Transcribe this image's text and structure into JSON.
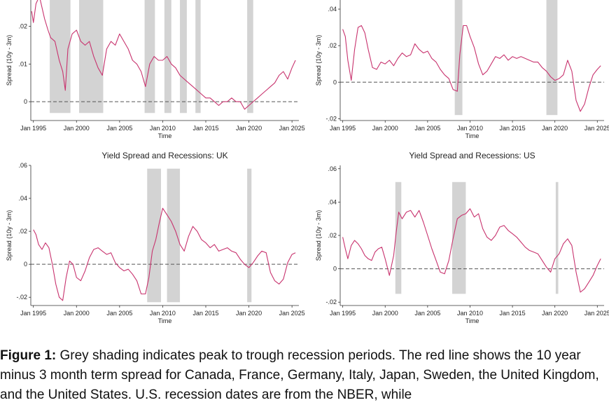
{
  "colors": {
    "series": "#c8336e",
    "recession": "#d3d3d3",
    "axis": "#333333",
    "zero_line": "#555555"
  },
  "caption": {
    "label": "Figure 1:",
    "text": " Grey shading indicates peak to trough recession periods. The red line shows the 10 year minus 3 month term spread for Canada, France, Germany, Italy, Japan, Sweden, the United Kingdom, and the United States. U.S. recession dates are from the NBER, while"
  },
  "chart_data": [
    {
      "type": "line",
      "title": "",
      "xlabel": "Time",
      "ylabel": "Spread (10y - 3m)",
      "xlim": [
        1994.7,
        2025.8
      ],
      "ylim": [
        -0.005,
        0.027
      ],
      "yticks": [
        {
          "v": 0,
          "label": "0"
        },
        {
          "v": 0.01,
          "label": ".01"
        },
        {
          "v": 0.02,
          "label": ".02"
        }
      ],
      "xticks": [
        {
          "v": 1995,
          "label": "Jan 1995"
        },
        {
          "v": 2000,
          "label": "Jan 2000"
        },
        {
          "v": 2005,
          "label": "Jan 2005"
        },
        {
          "v": 2010,
          "label": "Jan 2010"
        },
        {
          "v": 2015,
          "label": "Jan 2015"
        },
        {
          "v": 2020,
          "label": "Jan 2020"
        },
        {
          "v": 2025,
          "label": "Jan 2025"
        }
      ],
      "recessions": [
        [
          1996.9,
          1999.3
        ],
        [
          2000.3,
          2003.1
        ],
        [
          2007.9,
          2009.1
        ],
        [
          2010.2,
          2011.0
        ],
        [
          2012.0,
          2012.8
        ],
        [
          2013.8,
          2014.4
        ],
        [
          2019.8,
          2020.5
        ]
      ],
      "recession_range": [
        -0.003,
        0.027
      ],
      "x": [
        1994.8,
        1995.0,
        1995.3,
        1995.7,
        1996.0,
        1996.3,
        1996.7,
        1997.0,
        1997.5,
        1998.0,
        1998.4,
        1998.7,
        1999.0,
        1999.5,
        2000.0,
        2000.5,
        2001.0,
        2001.5,
        2002.0,
        2002.5,
        2003.0,
        2003.5,
        2004.0,
        2004.5,
        2005.0,
        2005.5,
        2006.0,
        2006.5,
        2007.0,
        2007.5,
        2008.0,
        2008.5,
        2009.0,
        2009.5,
        2010.0,
        2010.5,
        2011.0,
        2011.5,
        2012.0,
        2012.5,
        2013.0,
        2013.5,
        2014.0,
        2014.5,
        2015.0,
        2015.5,
        2016.0,
        2016.5,
        2017.0,
        2017.5,
        2018.0,
        2018.5,
        2019.0,
        2019.5,
        2020.0,
        2020.5,
        2021.0,
        2021.5,
        2022.0,
        2022.5,
        2023.0,
        2023.5,
        2024.0,
        2024.5,
        2025.0,
        2025.4
      ],
      "y": [
        0.024,
        0.021,
        0.026,
        0.028,
        0.025,
        0.022,
        0.019,
        0.017,
        0.016,
        0.011,
        0.008,
        0.003,
        0.014,
        0.018,
        0.019,
        0.016,
        0.015,
        0.016,
        0.012,
        0.009,
        0.007,
        0.014,
        0.016,
        0.015,
        0.018,
        0.016,
        0.014,
        0.011,
        0.01,
        0.008,
        0.004,
        0.01,
        0.012,
        0.011,
        0.011,
        0.012,
        0.01,
        0.009,
        0.007,
        0.006,
        0.005,
        0.004,
        0.003,
        0.002,
        0.001,
        0.001,
        0.0,
        -0.001,
        0.0,
        0.0,
        0.001,
        0.0,
        0.0,
        -0.002,
        -0.001,
        0.0,
        0.001,
        0.002,
        0.003,
        0.004,
        0.005,
        0.007,
        0.008,
        0.006,
        0.009,
        0.011
      ]
    },
    {
      "type": "line",
      "title": "",
      "xlabel": "Time",
      "ylabel": "Spread (10y - 3m)",
      "xlim": [
        1994.7,
        2025.8
      ],
      "ylim": [
        -0.021,
        0.045
      ],
      "yticks": [
        {
          "v": -0.02,
          "label": "-.02"
        },
        {
          "v": 0,
          "label": "0"
        },
        {
          "v": 0.02,
          "label": ".02"
        },
        {
          "v": 0.04,
          "label": ".04"
        }
      ],
      "xticks": [
        {
          "v": 1995,
          "label": "Jan 1995"
        },
        {
          "v": 2000,
          "label": "Jan 2000"
        },
        {
          "v": 2005,
          "label": "Jan 2005"
        },
        {
          "v": 2010,
          "label": "Jan 2010"
        },
        {
          "v": 2015,
          "label": "Jan 2015"
        },
        {
          "v": 2020,
          "label": "Jan 2020"
        },
        {
          "v": 2025,
          "label": "Jan 2025"
        }
      ],
      "recessions": [
        [
          2008.2,
          2009.1
        ],
        [
          2019.0,
          2020.3
        ]
      ],
      "recession_range": [
        -0.018,
        0.05
      ],
      "x": [
        1995.0,
        1995.3,
        1995.6,
        1996.0,
        1996.4,
        1996.8,
        1997.2,
        1997.6,
        1998.0,
        1998.5,
        1999.0,
        1999.5,
        2000.0,
        2000.5,
        2001.0,
        2001.5,
        2002.0,
        2002.5,
        2003.0,
        2003.5,
        2004.0,
        2004.5,
        2005.0,
        2005.5,
        2006.0,
        2006.5,
        2007.0,
        2007.5,
        2008.0,
        2008.5,
        2008.8,
        2009.2,
        2009.6,
        2010.0,
        2010.5,
        2011.0,
        2011.5,
        2012.0,
        2012.5,
        2013.0,
        2013.5,
        2014.0,
        2014.5,
        2015.0,
        2015.5,
        2016.0,
        2016.5,
        2017.0,
        2017.5,
        2018.0,
        2018.5,
        2019.0,
        2019.5,
        2020.0,
        2020.5,
        2021.0,
        2021.5,
        2022.0,
        2022.5,
        2023.0,
        2023.5,
        2024.0,
        2024.5,
        2025.0,
        2025.4
      ],
      "y": [
        0.029,
        0.025,
        0.012,
        0.001,
        0.018,
        0.03,
        0.031,
        0.027,
        0.018,
        0.008,
        0.007,
        0.011,
        0.01,
        0.012,
        0.009,
        0.013,
        0.016,
        0.014,
        0.015,
        0.021,
        0.018,
        0.016,
        0.017,
        0.013,
        0.011,
        0.007,
        0.004,
        0.002,
        -0.004,
        -0.005,
        0.015,
        0.031,
        0.031,
        0.025,
        0.019,
        0.01,
        0.004,
        0.006,
        0.01,
        0.014,
        0.013,
        0.015,
        0.012,
        0.014,
        0.013,
        0.014,
        0.013,
        0.012,
        0.011,
        0.011,
        0.008,
        0.006,
        0.003,
        0.001,
        0.002,
        0.004,
        0.012,
        0.006,
        -0.01,
        -0.016,
        -0.012,
        -0.003,
        0.004,
        0.007,
        0.009
      ]
    },
    {
      "type": "line",
      "title": "Yield Spread and Recessions: UK",
      "xlabel": "Time",
      "ylabel": "Spread (10y - 3m)",
      "xlim": [
        1994.7,
        2025.8
      ],
      "ylim": [
        -0.025,
        0.06
      ],
      "yticks": [
        {
          "v": -0.02,
          "label": "-.02"
        },
        {
          "v": 0,
          "label": "0"
        },
        {
          "v": 0.02,
          "label": ".02"
        },
        {
          "v": 0.04,
          "label": ".04"
        },
        {
          "v": 0.06,
          "label": ".06"
        }
      ],
      "xticks": [
        {
          "v": 1995,
          "label": "Jan 1995"
        },
        {
          "v": 2000,
          "label": "Jan 2000"
        },
        {
          "v": 2005,
          "label": "Jan 2005"
        },
        {
          "v": 2010,
          "label": "Jan 2010"
        },
        {
          "v": 2015,
          "label": "Jan 2015"
        },
        {
          "v": 2020,
          "label": "Jan 2020"
        },
        {
          "v": 2025,
          "label": "Jan 2025"
        }
      ],
      "recessions": [
        [
          2008.2,
          2009.8
        ],
        [
          2010.5,
          2012.0
        ],
        [
          2019.8,
          2020.3
        ]
      ],
      "recession_range": [
        -0.023,
        0.058
      ],
      "x": [
        1995.0,
        1995.3,
        1995.6,
        1996.0,
        1996.4,
        1996.8,
        1997.2,
        1997.6,
        1998.0,
        1998.4,
        1998.8,
        1999.2,
        1999.6,
        2000.0,
        2000.5,
        2001.0,
        2001.5,
        2002.0,
        2002.5,
        2003.0,
        2003.5,
        2004.0,
        2004.5,
        2005.0,
        2005.5,
        2006.0,
        2006.5,
        2007.0,
        2007.5,
        2008.0,
        2008.4,
        2008.8,
        2009.2,
        2009.6,
        2010.0,
        2010.5,
        2011.0,
        2011.5,
        2012.0,
        2012.5,
        2013.0,
        2013.5,
        2014.0,
        2014.5,
        2015.0,
        2015.5,
        2016.0,
        2016.5,
        2017.0,
        2017.5,
        2018.0,
        2018.5,
        2019.0,
        2019.5,
        2020.0,
        2020.5,
        2021.0,
        2021.5,
        2022.0,
        2022.5,
        2023.0,
        2023.5,
        2024.0,
        2024.5,
        2025.0,
        2025.4
      ],
      "y": [
        0.021,
        0.018,
        0.012,
        0.009,
        0.013,
        0.01,
        0.0,
        -0.012,
        -0.02,
        -0.022,
        -0.008,
        0.002,
        0.0,
        -0.008,
        -0.01,
        -0.004,
        0.004,
        0.009,
        0.01,
        0.008,
        0.006,
        0.007,
        0.001,
        -0.002,
        -0.004,
        -0.003,
        -0.006,
        -0.01,
        -0.018,
        -0.018,
        -0.008,
        0.008,
        0.015,
        0.025,
        0.034,
        0.03,
        0.026,
        0.02,
        0.012,
        0.008,
        0.017,
        0.023,
        0.02,
        0.015,
        0.013,
        0.01,
        0.012,
        0.008,
        0.009,
        0.01,
        0.008,
        0.007,
        0.003,
        0.0,
        -0.002,
        0.001,
        0.005,
        0.008,
        0.007,
        -0.005,
        -0.01,
        -0.012,
        -0.009,
        0.001,
        0.006,
        0.007
      ]
    },
    {
      "type": "line",
      "title": "Yield Spread and Recessions: US",
      "xlabel": "Time",
      "ylabel": "Spread (10y - 3m)",
      "xlim": [
        1994.7,
        2025.8
      ],
      "ylim": [
        -0.022,
        0.062
      ],
      "yticks": [
        {
          "v": -0.02,
          "label": "-.02"
        },
        {
          "v": 0,
          "label": "0"
        },
        {
          "v": 0.02,
          "label": ".02"
        },
        {
          "v": 0.04,
          "label": ".04"
        },
        {
          "v": 0.06,
          "label": ".06"
        }
      ],
      "xticks": [
        {
          "v": 1995,
          "label": "Jan 1995"
        },
        {
          "v": 2000,
          "label": "Jan 2000"
        },
        {
          "v": 2005,
          "label": "Jan 2005"
        },
        {
          "v": 2010,
          "label": "Jan 2010"
        },
        {
          "v": 2015,
          "label": "Jan 2015"
        },
        {
          "v": 2020,
          "label": "Jan 2020"
        },
        {
          "v": 2025,
          "label": "Jan 2025"
        }
      ],
      "recessions": [
        [
          2001.2,
          2001.9
        ],
        [
          2007.9,
          2009.5
        ],
        [
          2020.1,
          2020.4
        ]
      ],
      "recession_range": [
        -0.015,
        0.052
      ],
      "x": [
        1995.0,
        1995.3,
        1995.6,
        1996.0,
        1996.4,
        1996.8,
        1997.2,
        1997.6,
        1998.0,
        1998.4,
        1998.8,
        1999.2,
        1999.6,
        2000.0,
        2000.5,
        2001.0,
        2001.3,
        2001.6,
        2002.0,
        2002.5,
        2003.0,
        2003.5,
        2004.0,
        2004.5,
        2005.0,
        2005.5,
        2006.0,
        2006.5,
        2007.0,
        2007.5,
        2008.0,
        2008.5,
        2009.0,
        2009.5,
        2010.0,
        2010.5,
        2011.0,
        2011.5,
        2012.0,
        2012.5,
        2013.0,
        2013.5,
        2014.0,
        2014.5,
        2015.0,
        2015.5,
        2016.0,
        2016.5,
        2017.0,
        2017.5,
        2018.0,
        2018.5,
        2019.0,
        2019.5,
        2020.0,
        2020.5,
        2021.0,
        2021.5,
        2022.0,
        2022.5,
        2023.0,
        2023.5,
        2024.0,
        2024.5,
        2025.0,
        2025.4
      ],
      "y": [
        0.019,
        0.012,
        0.006,
        0.014,
        0.017,
        0.015,
        0.012,
        0.008,
        0.006,
        0.005,
        0.01,
        0.012,
        0.013,
        0.006,
        -0.004,
        0.008,
        0.022,
        0.034,
        0.03,
        0.034,
        0.035,
        0.031,
        0.035,
        0.028,
        0.02,
        0.012,
        0.005,
        -0.002,
        -0.003,
        0.005,
        0.018,
        0.03,
        0.032,
        0.033,
        0.036,
        0.031,
        0.033,
        0.024,
        0.019,
        0.017,
        0.02,
        0.025,
        0.026,
        0.023,
        0.021,
        0.019,
        0.016,
        0.013,
        0.011,
        0.01,
        0.009,
        0.005,
        0.001,
        -0.002,
        0.006,
        0.009,
        0.015,
        0.018,
        0.014,
        -0.002,
        -0.014,
        -0.012,
        -0.008,
        -0.004,
        0.002,
        0.006
      ]
    }
  ]
}
